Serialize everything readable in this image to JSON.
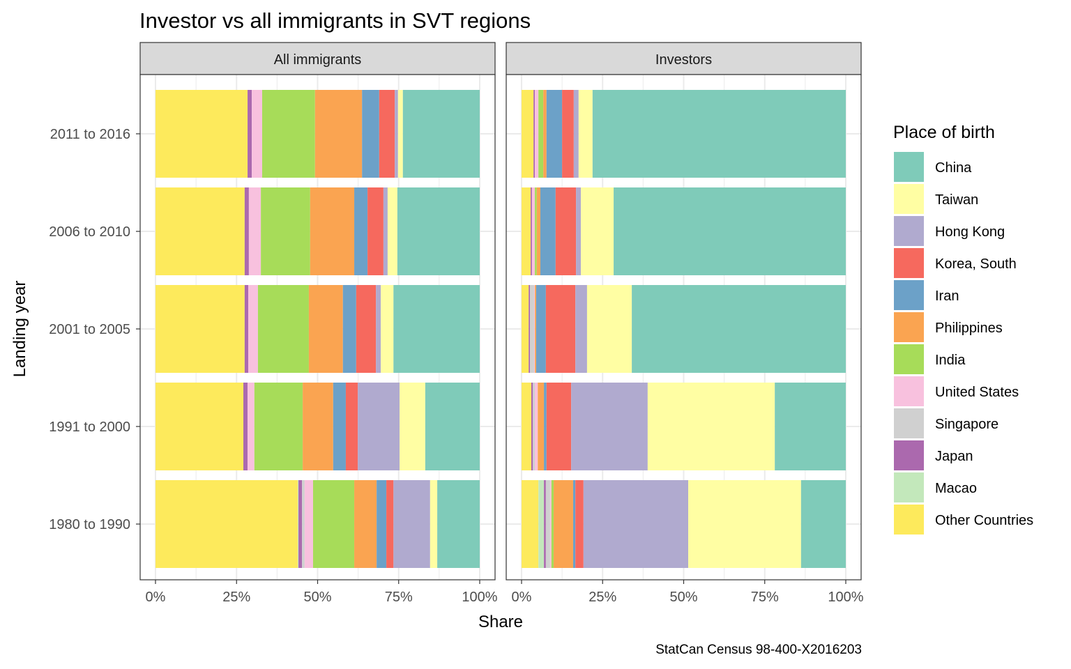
{
  "chart_data": {
    "type": "bar",
    "orientation": "horizontal",
    "stacked": "fill",
    "title": "Investor vs all immigrants in SVT regions",
    "xlabel": "Share",
    "ylabel": "Landing year",
    "caption": "StatCan Census 98-400-X2016203",
    "xlim": [
      0,
      100
    ],
    "x_ticks": [
      "0%",
      "25%",
      "50%",
      "75%",
      "100%"
    ],
    "grid": true,
    "legend": {
      "title": "Place of birth",
      "position": "right",
      "entries": [
        {
          "name": "China",
          "color": "#7fcbb9"
        },
        {
          "name": "Taiwan",
          "color": "#fffea3"
        },
        {
          "name": "Hong Kong",
          "color": "#b0aacf"
        },
        {
          "name": "Korea, South",
          "color": "#f6695e"
        },
        {
          "name": "Iran",
          "color": "#6ca1c8"
        },
        {
          "name": "Philippines",
          "color": "#faa451"
        },
        {
          "name": "India",
          "color": "#a7dc59"
        },
        {
          "name": "United States",
          "color": "#f8c1de"
        },
        {
          "name": "Singapore",
          "color": "#d0d0d0"
        },
        {
          "name": "Japan",
          "color": "#ab69ae"
        },
        {
          "name": "Macao",
          "color": "#c3e8bb"
        },
        {
          "name": "Other Countries",
          "color": "#fdea5c"
        }
      ]
    },
    "stack_order": [
      "Other Countries",
      "Macao",
      "Japan",
      "Singapore",
      "United States",
      "India",
      "Philippines",
      "Iran",
      "Korea, South",
      "Hong Kong",
      "Taiwan",
      "China"
    ],
    "categories": [
      "2011 to 2016",
      "2006 to 2010",
      "2001 to 2005",
      "1991 to 2000",
      "1980 to 1990"
    ],
    "panels": [
      {
        "name": "All immigrants",
        "series": [
          {
            "name": "Other Countries",
            "values": [
              28.4,
              27.5,
              27.5,
              27.1,
              43.9
            ]
          },
          {
            "name": "Macao",
            "values": [
              0,
              0,
              0,
              0,
              0.2
            ]
          },
          {
            "name": "Japan",
            "values": [
              1.3,
              1.3,
              1.1,
              1.3,
              1.1
            ]
          },
          {
            "name": "Singapore",
            "values": [
              0,
              0,
              0,
              0,
              0.8
            ]
          },
          {
            "name": "United States",
            "values": [
              3.2,
              3.7,
              3.0,
              2.1,
              2.6
            ]
          },
          {
            "name": "India",
            "values": [
              16.3,
              15.2,
              15.7,
              14.9,
              12.7
            ]
          },
          {
            "name": "Philippines",
            "values": [
              14.5,
              13.6,
              10.5,
              9.4,
              6.9
            ]
          },
          {
            "name": "Iran",
            "values": [
              5.3,
              4.1,
              4.1,
              3.9,
              3.0
            ]
          },
          {
            "name": "Korea, South",
            "values": [
              4.8,
              4.9,
              6.1,
              3.7,
              2.2
            ]
          },
          {
            "name": "Hong Kong",
            "values": [
              1.0,
              1.3,
              1.5,
              12.9,
              11.3
            ]
          },
          {
            "name": "Taiwan",
            "values": [
              1.5,
              3.0,
              3.9,
              7.9,
              2.2
            ]
          },
          {
            "name": "China",
            "values": [
              23.7,
              25.4,
              26.6,
              16.8,
              13.1
            ]
          }
        ]
      },
      {
        "name": "Investors",
        "series": [
          {
            "name": "Other Countries",
            "values": [
              3.7,
              2.8,
              2.2,
              3.0,
              5.2
            ]
          },
          {
            "name": "Macao",
            "values": [
              0,
              0,
              0,
              0,
              1.7
            ]
          },
          {
            "name": "Japan",
            "values": [
              0.4,
              0.4,
              0.4,
              0.5,
              0.6
            ]
          },
          {
            "name": "Singapore",
            "values": [
              0,
              0,
              1.3,
              0.6,
              1.3
            ]
          },
          {
            "name": "United States",
            "values": [
              1.1,
              0.9,
              0.2,
              0.9,
              0.4
            ]
          },
          {
            "name": "India",
            "values": [
              1.5,
              0.6,
              0,
              0,
              0.7
            ]
          },
          {
            "name": "Philippines",
            "values": [
              1.0,
              1.1,
              0.4,
              1.9,
              6.0
            ]
          },
          {
            "name": "Iran",
            "values": [
              4.8,
              4.7,
              3.0,
              0.8,
              0.7
            ]
          },
          {
            "name": "Korea, South",
            "values": [
              3.6,
              6.3,
              9.1,
              7.6,
              2.5
            ]
          },
          {
            "name": "Hong Kong",
            "values": [
              1.5,
              1.5,
              3.6,
              23.6,
              32.3
            ]
          },
          {
            "name": "Taiwan",
            "values": [
              4.3,
              10.1,
              13.8,
              39.2,
              34.8
            ]
          },
          {
            "name": "China",
            "values": [
              78.1,
              71.6,
              66.0,
              21.9,
              13.8
            ]
          }
        ]
      }
    ]
  }
}
